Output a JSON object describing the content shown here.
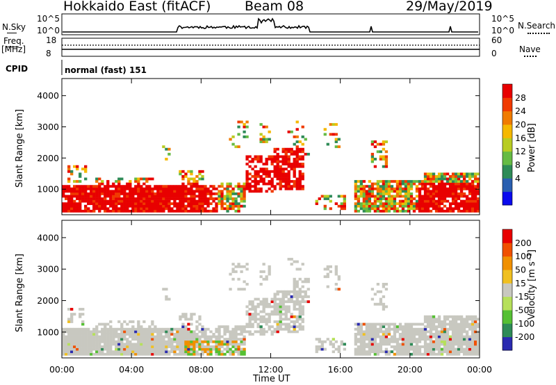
{
  "header": {
    "title_left": "Hokkaido East (fitACF)",
    "title_center": "Beam 08",
    "title_right": "29/May/2019"
  },
  "top_panels": {
    "nsky_label": "N.Sky",
    "nsearch_label": "N.Search",
    "nsky_ticks": [
      "10^5",
      "10^0"
    ],
    "nsearch_ticks": [
      "10^5",
      "10^0"
    ],
    "freq_label_1": "Freq.",
    "freq_label_2": "[MHz]",
    "freq_ticks": [
      "18",
      "8"
    ],
    "nave_label": "Nave",
    "nave_ticks": [
      "60",
      "0"
    ],
    "cpid_label": "CPID",
    "cpid_value": "normal (fast) 151"
  },
  "colors": {
    "power": [
      "#0a0aee",
      "#2a5fb0",
      "#2e8b57",
      "#66bb44",
      "#b8cc22",
      "#f5b800",
      "#f07b00",
      "#f03a00",
      "#e80000"
    ],
    "velocity": [
      "#2a2ab0",
      "#2e8b57",
      "#55c033",
      "#b6e05a",
      "#c8c8c0",
      "#f0c020",
      "#f09000",
      "#f05000",
      "#e80000"
    ]
  },
  "chart_data": [
    {
      "type": "heatmap",
      "quantity": "power",
      "ylabel": "Slant Range [km]",
      "ylim": [
        180,
        4550
      ],
      "y_ticks": [
        "4000",
        "3000",
        "2000",
        "1000"
      ],
      "x_ticks": [
        "00:00",
        "04:00",
        "08:00",
        "12:00",
        "16:00",
        "20:00",
        "00:00"
      ],
      "colorbar_label": "Power [dB]",
      "colorbar_ticks": [
        "28",
        "24",
        "20",
        "16",
        "12",
        "8",
        "4"
      ]
    },
    {
      "type": "heatmap",
      "quantity": "velocity",
      "ylabel": "Slant Range [km]",
      "ylim": [
        180,
        4550
      ],
      "y_ticks": [
        "4000",
        "3000",
        "2000",
        "1000"
      ],
      "x_ticks": [
        "00:00",
        "04:00",
        "08:00",
        "12:00",
        "16:00",
        "20:00",
        "00:00"
      ],
      "xlabel": "Time UT",
      "colorbar_label": "Velocity [m s⁻¹]",
      "colorbar_ticks": [
        "200",
        "100",
        "50",
        "15",
        "-15",
        "-50",
        "-100",
        "-200"
      ]
    }
  ]
}
